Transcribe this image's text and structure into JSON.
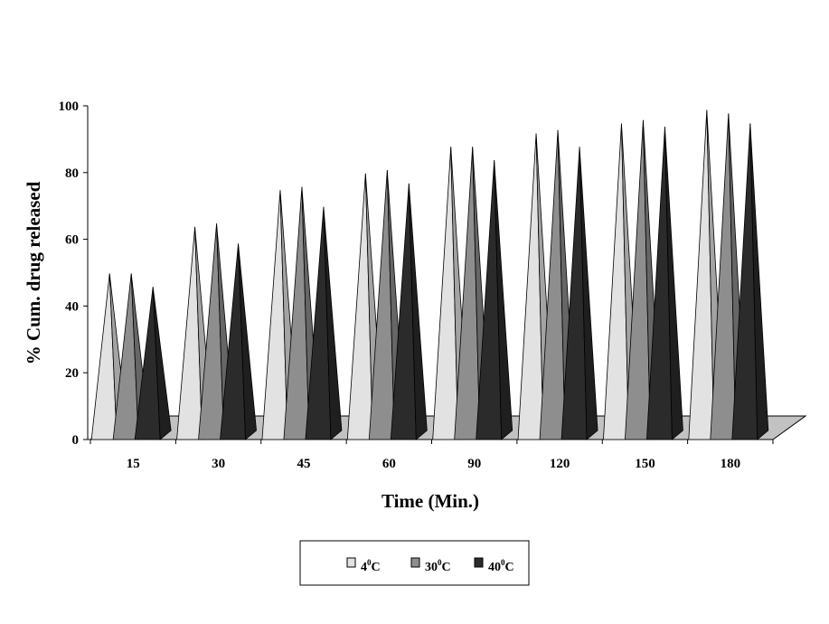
{
  "chart_data": {
    "type": "bar",
    "subtype": "3d-cone",
    "title": "",
    "xlabel": "Time (Min.)",
    "ylabel": "% Cum. drug released",
    "categories": [
      "15",
      "30",
      "45",
      "60",
      "90",
      "120",
      "150",
      "180"
    ],
    "ylim": [
      0,
      100
    ],
    "yticks": [
      "0",
      "20",
      "40",
      "60",
      "80",
      "100"
    ],
    "series": [
      {
        "name": "4",
        "name_sup": "0",
        "name_unit": "C",
        "color": "#e2e2e2",
        "values": [
          47,
          61,
          72,
          77,
          85,
          89,
          92,
          96
        ]
      },
      {
        "name": "30",
        "name_sup": "0",
        "name_unit": "C",
        "color": "#8e8e8e",
        "values": [
          47,
          62,
          73,
          78,
          85,
          90,
          93,
          95
        ]
      },
      {
        "name": "40",
        "name_sup": "0",
        "name_unit": "C",
        "color": "#2b2b2b",
        "values": [
          43,
          56,
          67,
          74,
          81,
          85,
          91,
          92
        ]
      }
    ],
    "grid": false,
    "legend": "bottom-center"
  }
}
